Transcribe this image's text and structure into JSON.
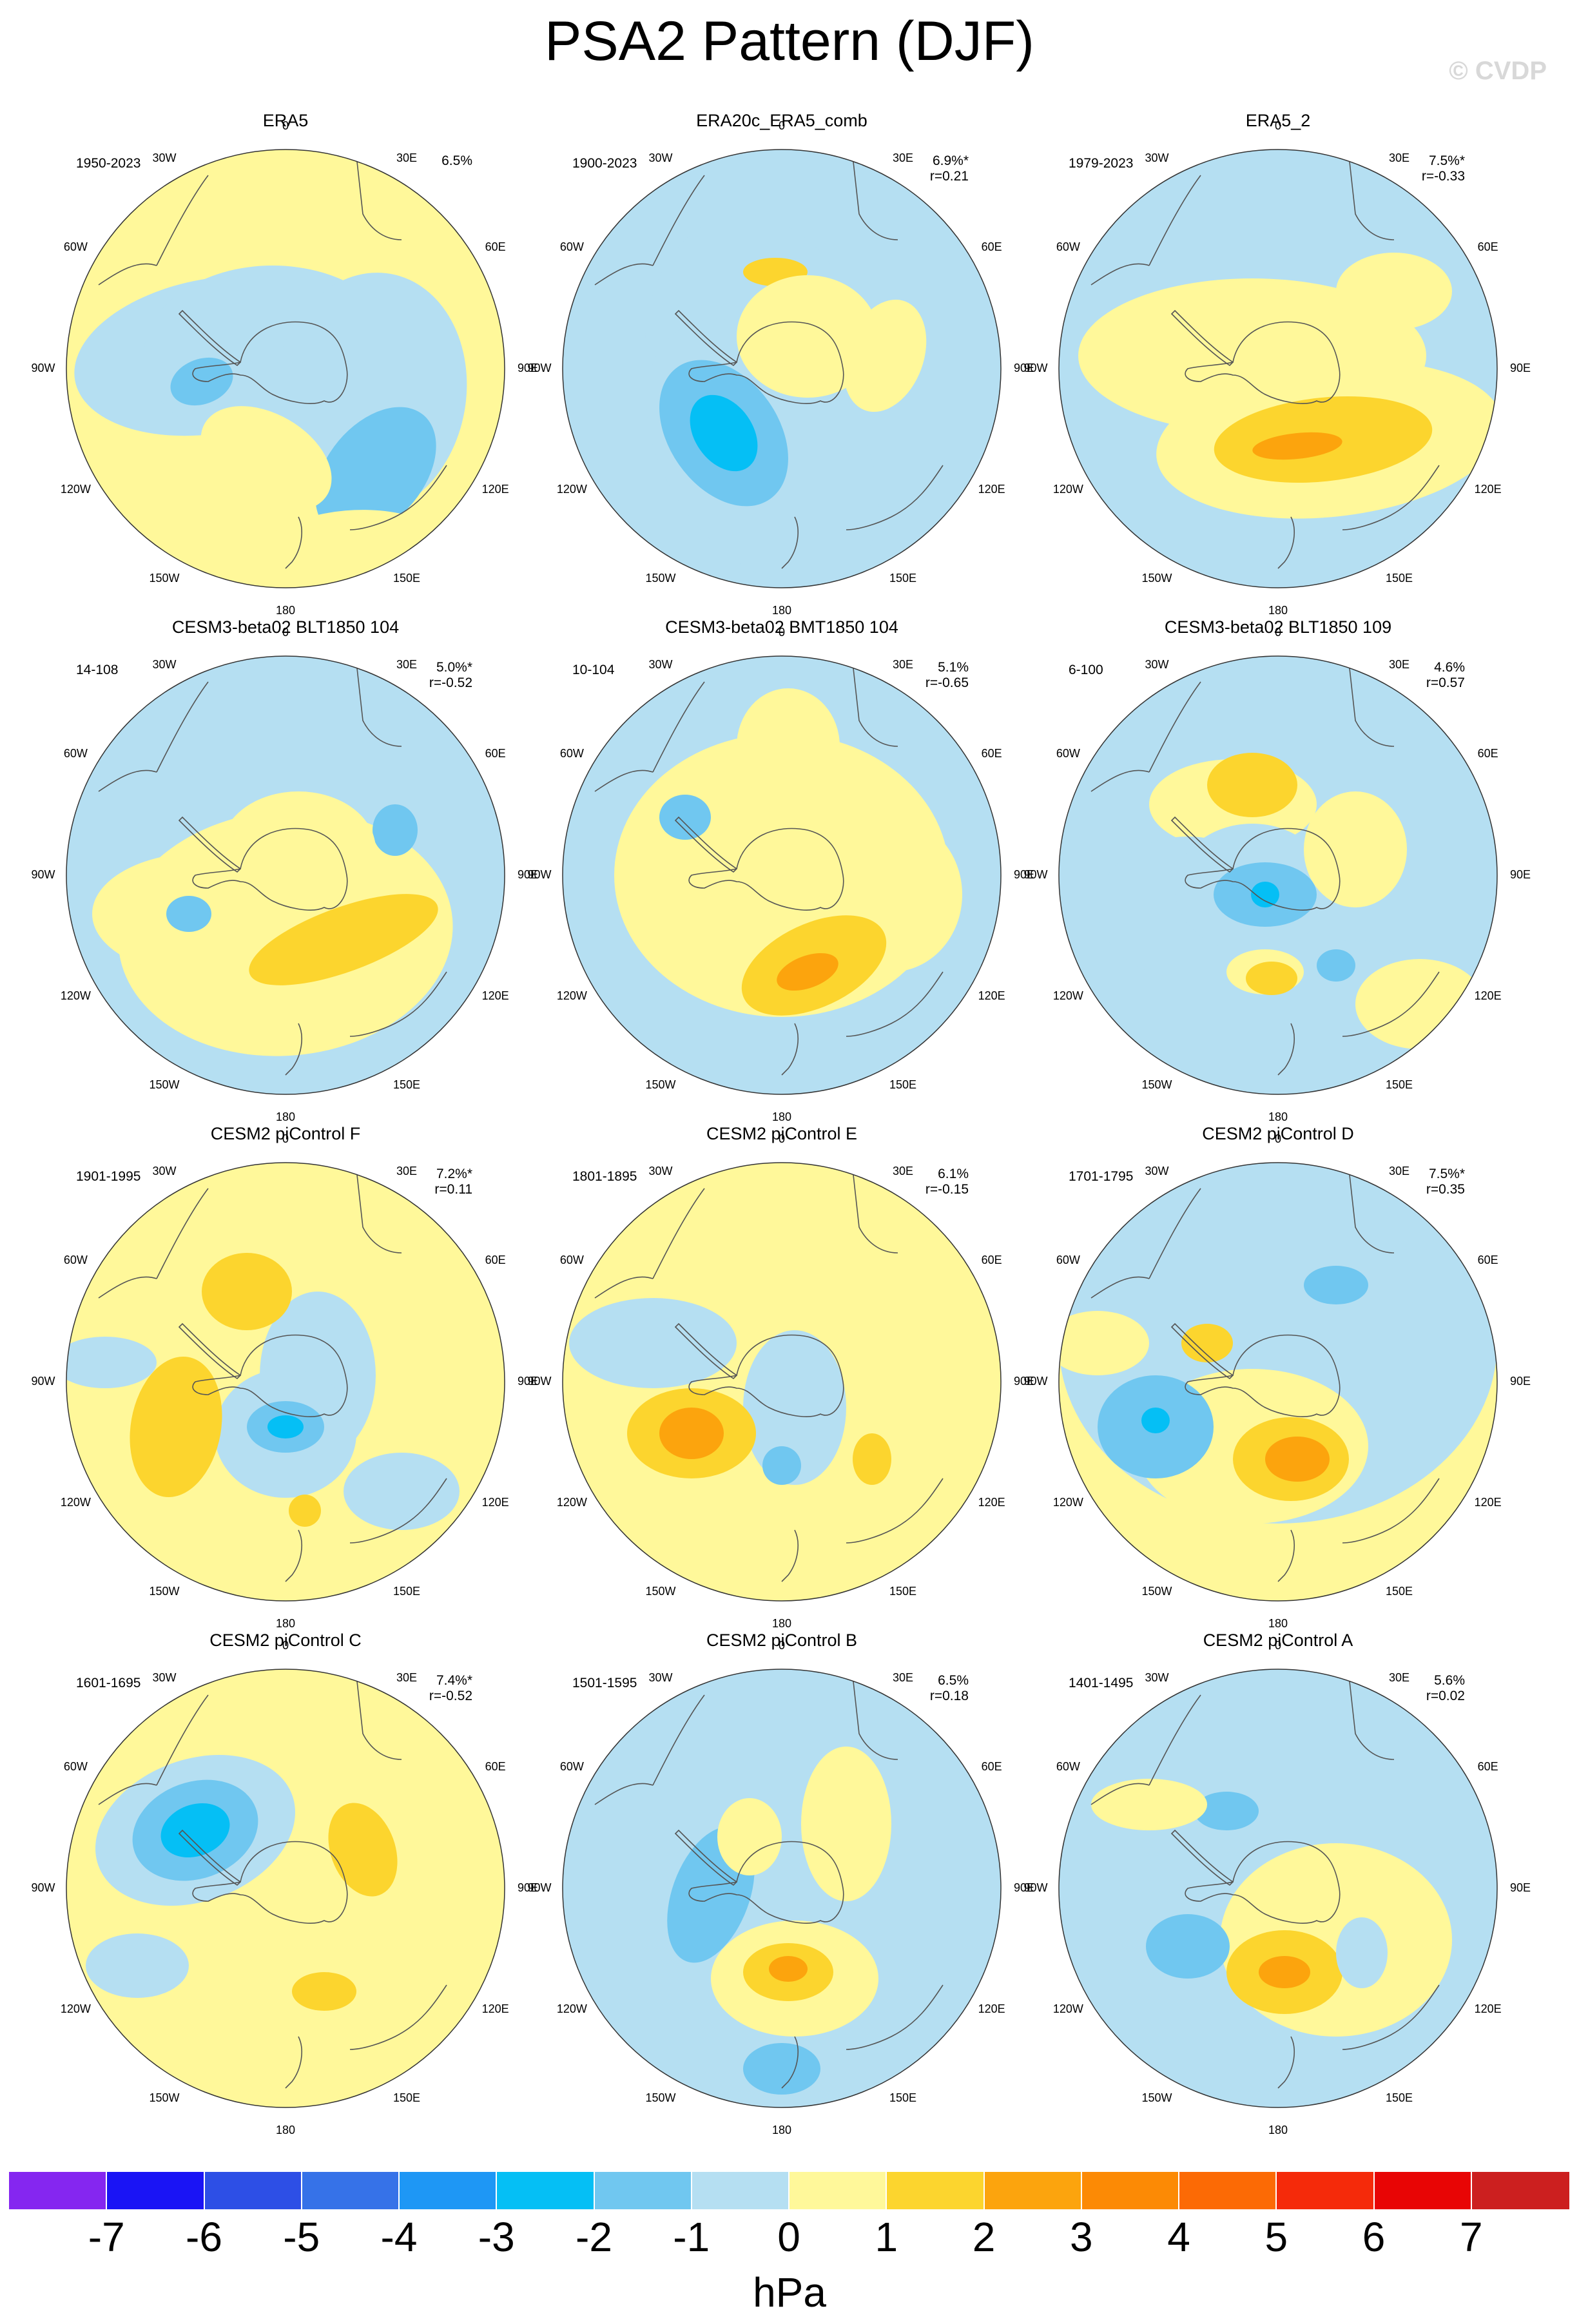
{
  "title": "PSA2 Pattern (DJF)",
  "watermark": "© CVDP",
  "longitude_labels": [
    "0",
    "30E",
    "60E",
    "90E",
    "120E",
    "150E",
    "180",
    "150W",
    "120W",
    "90W",
    "60W",
    "30W"
  ],
  "colors": {
    "neg7": "#8526f0",
    "neg6": "#1a14f5",
    "neg5": "#2d4fe6",
    "neg4": "#3672e8",
    "neg3": "#1e97f5",
    "neg2": "#05bff5",
    "neg1": "#70c7f0",
    "zero_minus": "#b5dff2",
    "zero_plus": "#fff89a",
    "pos1": "#fcd52e",
    "pos2": "#fca40d",
    "pos3": "#fc8a05",
    "pos4": "#fc6a05",
    "pos5": "#f52a0a",
    "pos6": "#e80505",
    "pos7": "#cc1f1f",
    "pos8": "#fbb3b3",
    "coast": "#555555"
  },
  "panels": [
    {
      "title": "ERA5",
      "period": "1950-2023",
      "pct": "6.5%",
      "r": ""
    },
    {
      "title": "ERA20c_ERA5_comb",
      "period": "1900-2023",
      "pct": "6.9%*",
      "r": "r=0.21"
    },
    {
      "title": "ERA5_2",
      "period": "1979-2023",
      "pct": "7.5%*",
      "r": "r=-0.33"
    },
    {
      "title": "CESM3-beta02 BLT1850 104",
      "period": "14-108",
      "pct": "5.0%*",
      "r": "r=-0.52"
    },
    {
      "title": "CESM3-beta02 BMT1850 104",
      "period": "10-104",
      "pct": "5.1%",
      "r": "r=-0.65"
    },
    {
      "title": "CESM3-beta02 BLT1850 109",
      "period": "6-100",
      "pct": "4.6%",
      "r": "r=0.57"
    },
    {
      "title": "CESM2 piControl F",
      "period": "1901-1995",
      "pct": "7.2%*",
      "r": "r=0.11"
    },
    {
      "title": "CESM2 piControl E",
      "period": "1801-1895",
      "pct": "6.1%",
      "r": "r=-0.15"
    },
    {
      "title": "CESM2 piControl D",
      "period": "1701-1795",
      "pct": "7.5%*",
      "r": "r=0.35"
    },
    {
      "title": "CESM2 piControl C",
      "period": "1601-1695",
      "pct": "7.4%*",
      "r": "r=-0.52"
    },
    {
      "title": "CESM2 piControl B",
      "period": "1501-1595",
      "pct": "6.5%",
      "r": "r=0.18"
    },
    {
      "title": "CESM2 piControl A",
      "period": "1401-1495",
      "pct": "5.6%",
      "r": "r=0.02"
    }
  ],
  "colorbar": {
    "labels": [
      "-7",
      "-6",
      "-5",
      "-4",
      "-3",
      "-2",
      "-1",
      "0",
      "1",
      "2",
      "3",
      "4",
      "5",
      "6",
      "7"
    ],
    "units": "hPa"
  }
}
